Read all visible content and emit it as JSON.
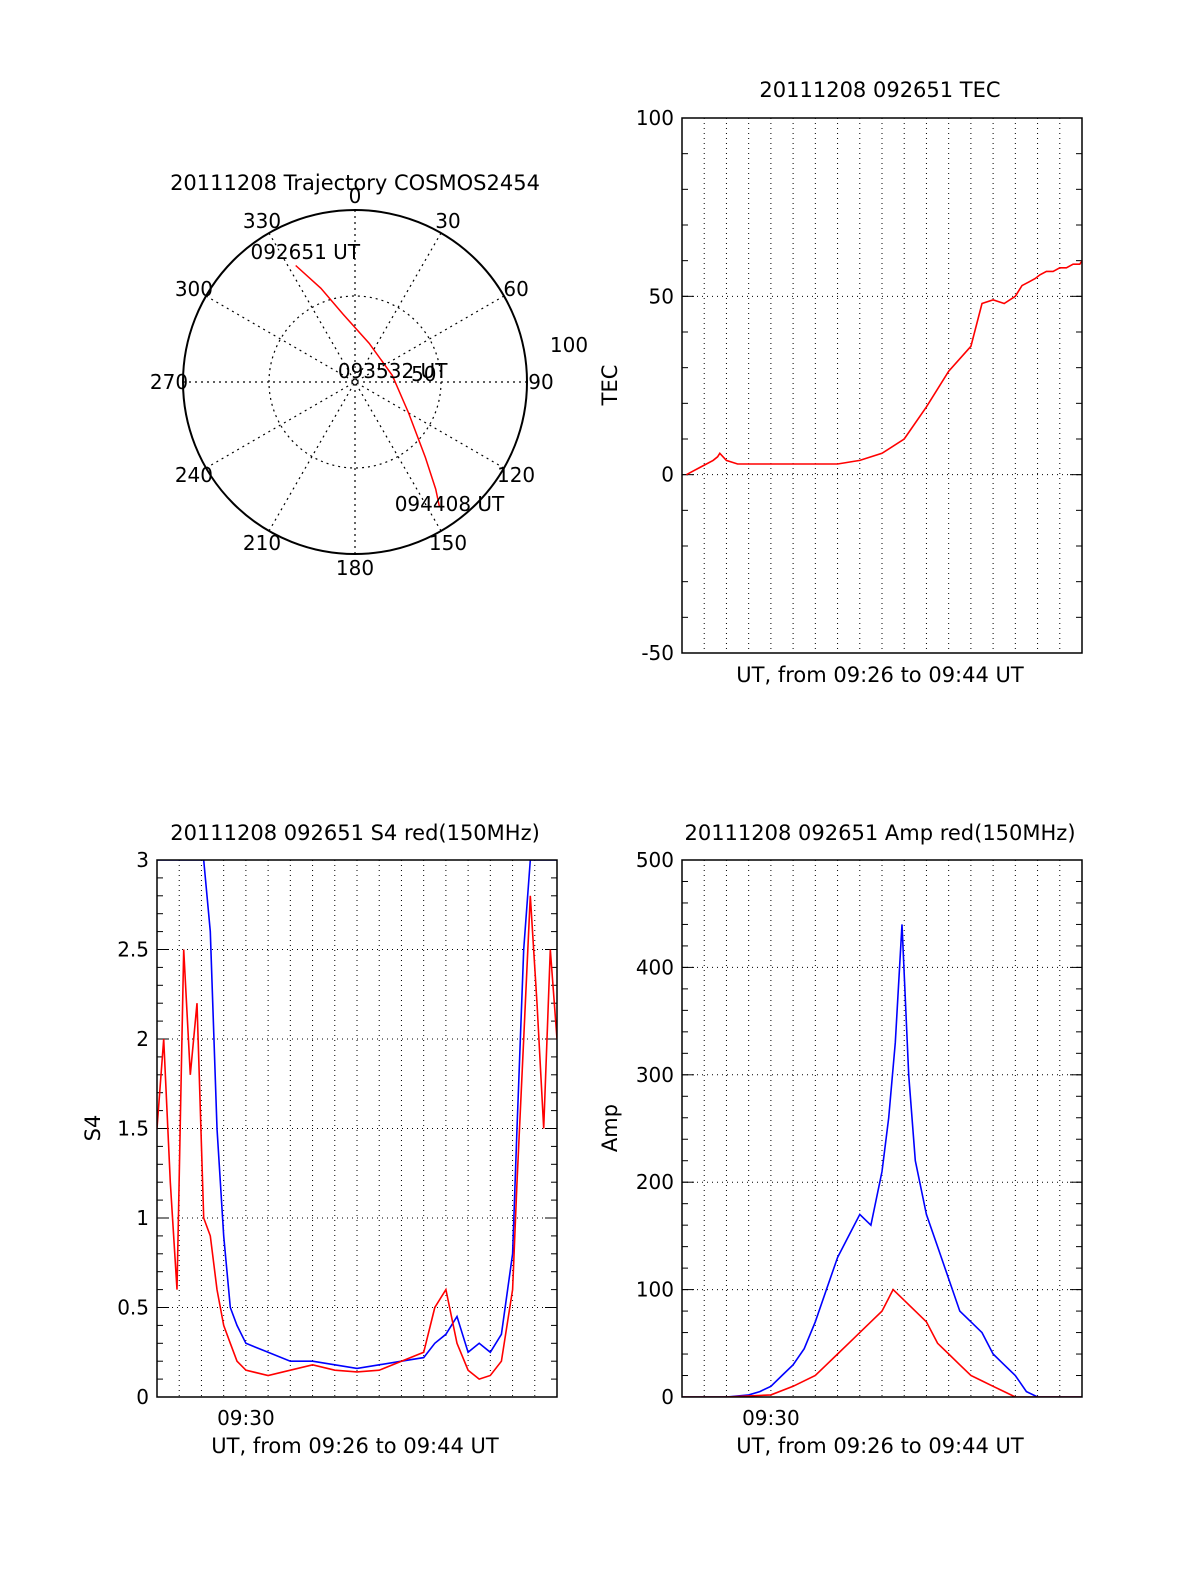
{
  "chart_data": [
    {
      "id": "trajectory",
      "type": "polar",
      "title": "20111208 Trajectory COSMOS2454",
      "angle_labels": [
        "0",
        "30",
        "60",
        "90",
        "120",
        "150",
        "180",
        "210",
        "240",
        "270",
        "300",
        "330"
      ],
      "radial_labels": [
        "50",
        "100"
      ],
      "rlim": [
        0,
        100
      ],
      "grid": true,
      "series": [
        {
          "color": "#ff0000",
          "points": [
            {
              "az": 333,
              "r": 76
            },
            {
              "az": 340,
              "r": 58
            },
            {
              "az": 350,
              "r": 40
            },
            {
              "az": 20,
              "r": 24
            },
            {
              "az": 80,
              "r": 22
            },
            {
              "az": 120,
              "r": 36
            },
            {
              "az": 137,
              "r": 60
            },
            {
              "az": 143,
              "r": 78
            },
            {
              "az": 146,
              "r": 88
            }
          ]
        }
      ],
      "annotations": [
        {
          "text": "092651 UT",
          "az": 342,
          "r": 80
        },
        {
          "text": "093532 UT",
          "az": 75,
          "r": 27
        },
        {
          "text": "094408 UT",
          "az": 140,
          "r": 92
        }
      ]
    },
    {
      "id": "tec",
      "type": "line",
      "title": "20111208 092651 TEC",
      "xlabel": "UT, from 09:26 to 09:44 UT",
      "ylabel": "TEC",
      "xlim": [
        0,
        18
      ],
      "ylim": [
        -50,
        100
      ],
      "yticks": [
        -50,
        0,
        50,
        100
      ],
      "xticks": [],
      "grid": true,
      "series": [
        {
          "color": "#ff0000",
          "x": [
            0.2,
            0.5,
            0.8,
            1.1,
            1.4,
            1.6,
            1.7,
            2,
            2.5,
            3,
            4,
            5,
            6,
            7,
            8,
            9,
            10,
            11,
            12,
            13,
            13.5,
            14,
            14.5,
            15,
            15.3,
            15.6,
            15.9,
            16.1,
            16.4,
            16.7,
            17,
            17.3,
            17.6,
            17.9,
            18
          ],
          "y": [
            0,
            1,
            2,
            3,
            4,
            5,
            6,
            4,
            3,
            3,
            3,
            3,
            3,
            3,
            4,
            6,
            10,
            19,
            29,
            36,
            48,
            49,
            48,
            50,
            53,
            54,
            55,
            56,
            57,
            57,
            58,
            58,
            59,
            59,
            60
          ]
        }
      ]
    },
    {
      "id": "s4",
      "type": "line",
      "title": "20111208 092651 S4 red(150MHz)",
      "xlabel": "UT, from 09:26 to 09:44 UT",
      "ylabel": "S4",
      "xlim": [
        0,
        18
      ],
      "ylim": [
        0,
        3
      ],
      "yticks": [
        0,
        0.5,
        1,
        1.5,
        2,
        2.5,
        3
      ],
      "xticks": [
        {
          "value": 4,
          "label": "09:30"
        }
      ],
      "grid": true,
      "series": [
        {
          "color": "#0000ff",
          "x": [
            0,
            0.3,
            0.6,
            0.9,
            1.2,
            1.5,
            1.8,
            2.1,
            2.4,
            2.7,
            3.0,
            3.3,
            3.6,
            4,
            5,
            6,
            7,
            8,
            9,
            10,
            11,
            12,
            12.5,
            13,
            13.5,
            14,
            14.5,
            15,
            15.5,
            16,
            16.2,
            16.5,
            16.8,
            17.1,
            17.4,
            17.7,
            18
          ],
          "x_note": "",
          "y": [
            3,
            3,
            3,
            3,
            3,
            3,
            3,
            3,
            2.6,
            1.5,
            0.9,
            0.5,
            0.4,
            0.3,
            0.25,
            0.2,
            0.2,
            0.18,
            0.16,
            0.18,
            0.2,
            0.22,
            0.3,
            0.35,
            0.45,
            0.25,
            0.3,
            0.25,
            0.35,
            0.8,
            1.5,
            2.5,
            3,
            3,
            3,
            3,
            3
          ]
        },
        {
          "color": "#ff0000",
          "x": [
            0,
            0.3,
            0.6,
            0.9,
            1.2,
            1.5,
            1.8,
            2.1,
            2.4,
            2.7,
            3.0,
            3.3,
            3.6,
            4,
            5,
            6,
            7,
            8,
            9,
            10,
            11,
            12,
            12.5,
            13,
            13.5,
            14,
            14.5,
            15,
            15.5,
            16,
            16.2,
            16.5,
            16.8,
            17.1,
            17.4,
            17.7,
            18
          ],
          "y": [
            1.5,
            2.0,
            1.2,
            0.6,
            2.5,
            1.8,
            2.2,
            1.0,
            0.9,
            0.6,
            0.4,
            0.3,
            0.2,
            0.15,
            0.12,
            0.15,
            0.18,
            0.15,
            0.14,
            0.15,
            0.2,
            0.25,
            0.5,
            0.6,
            0.3,
            0.15,
            0.1,
            0.12,
            0.2,
            0.6,
            1.2,
            2.0,
            2.8,
            2.2,
            1.5,
            2.5,
            2.0
          ]
        }
      ]
    },
    {
      "id": "amp",
      "type": "line",
      "title": "20111208 092651 Amp red(150MHz)",
      "xlabel": "UT, from 09:26 to 09:44 UT",
      "ylabel": "Amp",
      "xlim": [
        0,
        18
      ],
      "ylim": [
        0,
        500
      ],
      "yticks": [
        0,
        100,
        200,
        300,
        400,
        500
      ],
      "xticks": [
        {
          "value": 4,
          "label": "09:30"
        }
      ],
      "grid": true,
      "series": [
        {
          "color": "#0000ff",
          "x": [
            0,
            2,
            3,
            3.5,
            4,
            4.5,
            5,
            5.5,
            6,
            6.5,
            7,
            7.5,
            8,
            8.5,
            9,
            9.3,
            9.6,
            9.9,
            10.2,
            10.5,
            11,
            11.5,
            12,
            12.5,
            13,
            13.5,
            14,
            14.5,
            15,
            15.5,
            16,
            18
          ],
          "y": [
            0,
            0,
            2,
            5,
            10,
            20,
            30,
            45,
            70,
            100,
            130,
            150,
            170,
            160,
            210,
            260,
            330,
            440,
            300,
            220,
            170,
            140,
            110,
            80,
            70,
            60,
            40,
            30,
            20,
            5,
            0,
            0
          ]
        },
        {
          "color": "#ff0000",
          "x": [
            0,
            2,
            4,
            5,
            6,
            6.5,
            7,
            7.5,
            8,
            8.5,
            9,
            9.5,
            10,
            10.5,
            11,
            11.5,
            12,
            12.5,
            13,
            13.5,
            14,
            14.5,
            15,
            18
          ],
          "y": [
            0,
            0,
            2,
            10,
            20,
            30,
            40,
            50,
            60,
            70,
            80,
            100,
            90,
            80,
            70,
            50,
            40,
            30,
            20,
            15,
            10,
            5,
            0,
            0
          ]
        }
      ]
    }
  ]
}
